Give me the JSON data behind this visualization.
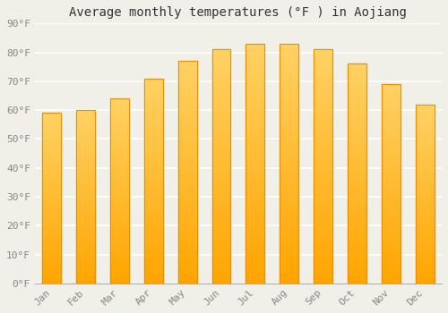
{
  "title": "Average monthly temperatures (°F ) in Aojiang",
  "months": [
    "Jan",
    "Feb",
    "Mar",
    "Apr",
    "May",
    "Jun",
    "Jul",
    "Aug",
    "Sep",
    "Oct",
    "Nov",
    "Dec"
  ],
  "values": [
    59,
    60,
    64,
    71,
    77,
    81,
    83,
    83,
    81,
    76,
    69,
    62
  ],
  "ylim": [
    0,
    90
  ],
  "yticks": [
    0,
    10,
    20,
    30,
    40,
    50,
    60,
    70,
    80,
    90
  ],
  "ytick_labels": [
    "0°F",
    "10°F",
    "20°F",
    "30°F",
    "40°F",
    "50°F",
    "60°F",
    "70°F",
    "80°F",
    "90°F"
  ],
  "background_color": "#f0efe8",
  "grid_color": "#ffffff",
  "title_fontsize": 10,
  "tick_fontsize": 8,
  "tick_color": "#888888",
  "bar_color_bottom": "#FFA500",
  "bar_color_top": "#FFD966",
  "bar_width": 0.55
}
